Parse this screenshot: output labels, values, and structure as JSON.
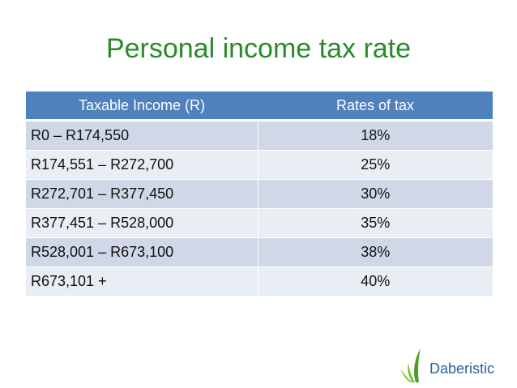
{
  "title": "Personal income tax rate",
  "table": {
    "headers": [
      "Taxable Income (R)",
      "Rates of tax"
    ],
    "rows": [
      {
        "income": "R0 – R174,550",
        "rate": "18%"
      },
      {
        "income": "R174,551 – R272,700",
        "rate": "25%"
      },
      {
        "income": "R272,701 – R377,450",
        "rate": "30%"
      },
      {
        "income": "R377,451 – R528,000",
        "rate": "35%"
      },
      {
        "income": "R528,001 – R673,100",
        "rate": "38%"
      },
      {
        "income": "R673,101 +",
        "rate": "40%"
      }
    ]
  },
  "brand": {
    "name": "Daberistic",
    "logo_icon": "leaf-logo-icon"
  },
  "colors": {
    "title": "#2a8a2a",
    "header_bg": "#4f81bd",
    "row_odd": "#d0d8e8",
    "row_even": "#e9edf4",
    "brand_text": "#2d5fa0",
    "logo_green": "#6cbf2c"
  }
}
